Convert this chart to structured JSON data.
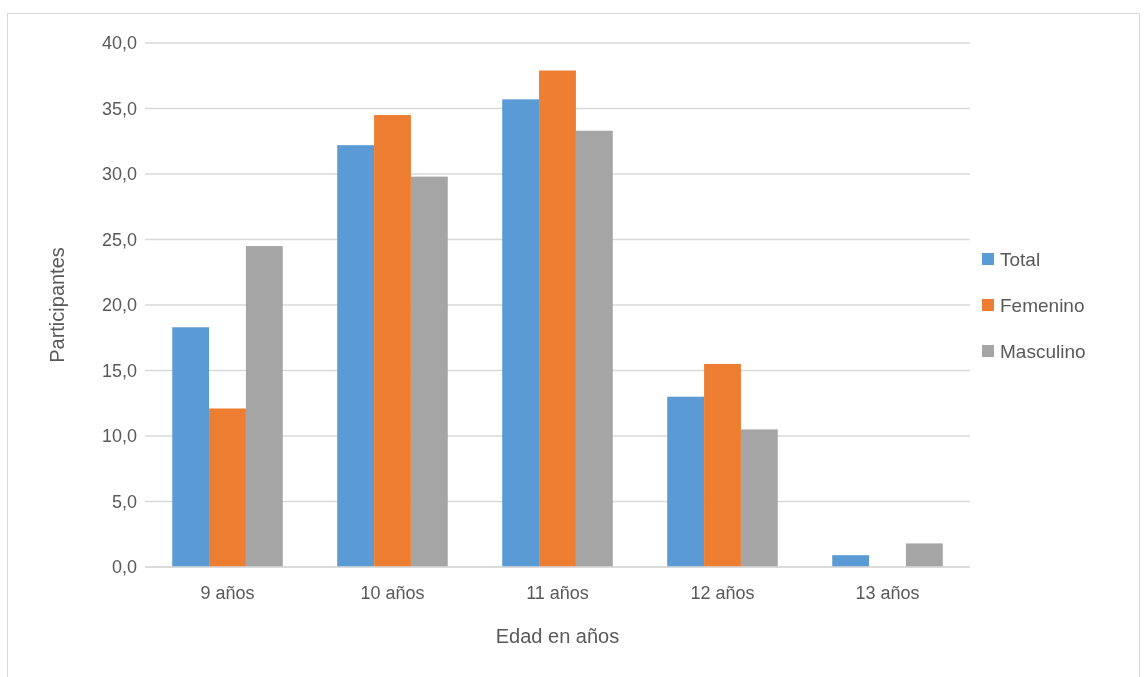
{
  "chart_data": {
    "type": "bar",
    "xlabel": "Edad en años",
    "ylabel": "Participantes",
    "categories": [
      "9 años",
      "10 años",
      "11 años",
      "12 años",
      "13 años"
    ],
    "series": [
      {
        "name": "Total",
        "color": "#5b9bd5",
        "values": [
          18.3,
          32.2,
          35.7,
          13.0,
          0.9
        ]
      },
      {
        "name": "Femenino",
        "color": "#ed7d31",
        "values": [
          12.1,
          34.5,
          37.9,
          15.5,
          0
        ]
      },
      {
        "name": "Masculino",
        "color": "#a5a5a5",
        "values": [
          24.5,
          29.8,
          33.3,
          10.5,
          1.8
        ]
      }
    ],
    "ylim": [
      0,
      40
    ],
    "yticks": [
      {
        "value": 0,
        "label": "0,0"
      },
      {
        "value": 5,
        "label": "5,0"
      },
      {
        "value": 10,
        "label": "10,0"
      },
      {
        "value": 15,
        "label": "15,0"
      },
      {
        "value": 20,
        "label": "20,0"
      },
      {
        "value": 25,
        "label": "25,0"
      },
      {
        "value": 30,
        "label": "30,0"
      },
      {
        "value": 35,
        "label": "35,0"
      },
      {
        "value": 40,
        "label": "40,0"
      }
    ],
    "grid": "y",
    "legend": "right"
  }
}
